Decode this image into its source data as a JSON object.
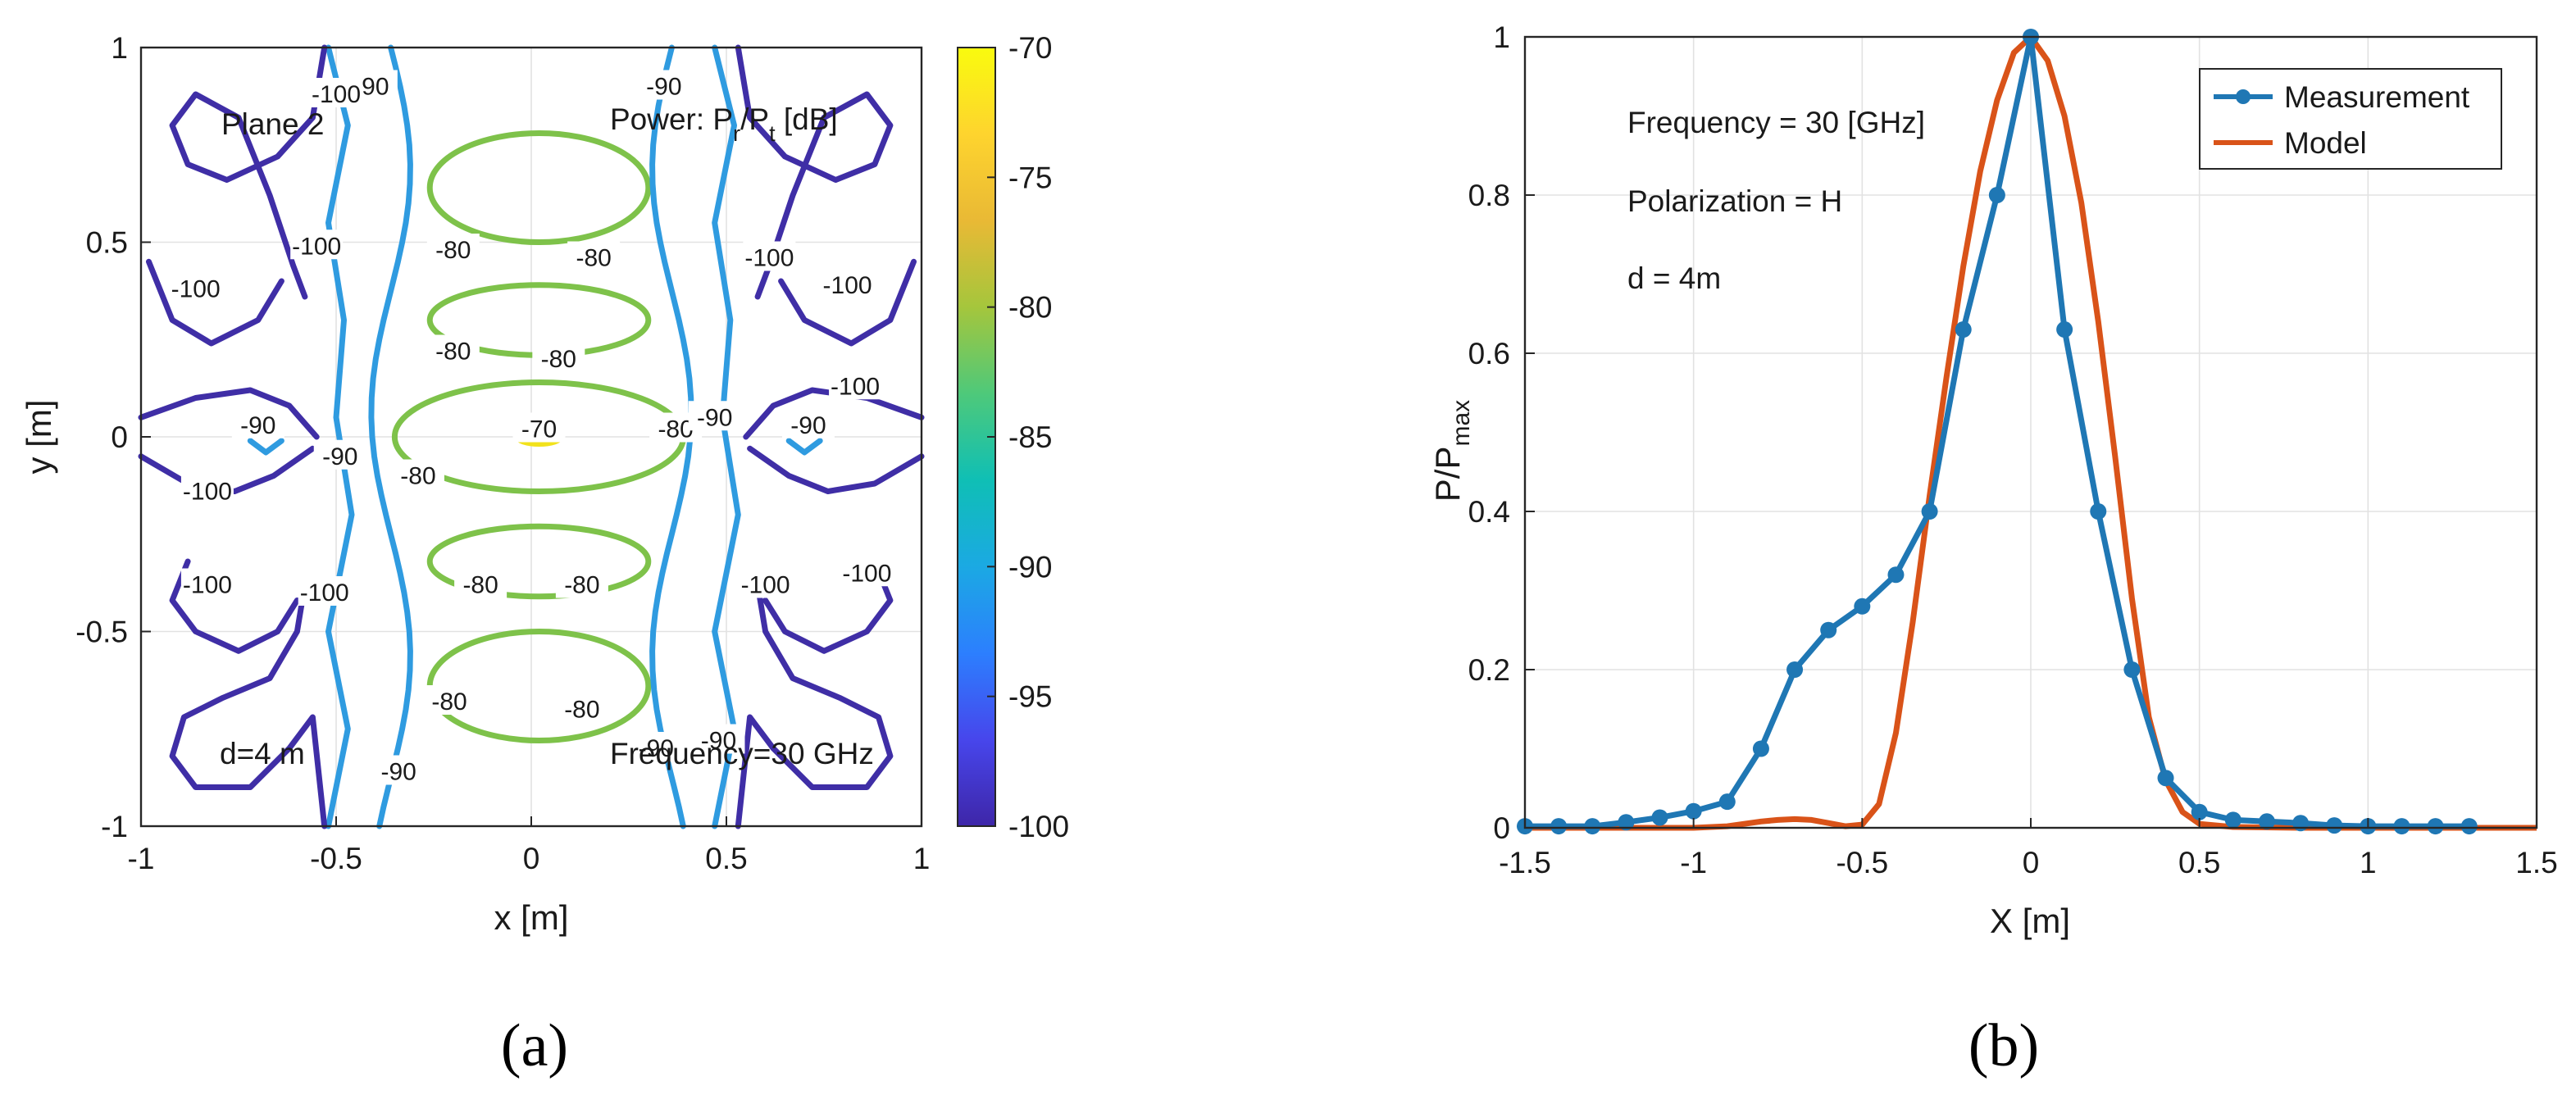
{
  "chart_data": [
    {
      "type": "contour",
      "panel_caption": "(a)",
      "xlabel": "x [m]",
      "ylabel": "y [m]",
      "xlim": [
        -1,
        1
      ],
      "ylim": [
        -1,
        1
      ],
      "xticks": [
        -1,
        -0.5,
        0,
        0.5,
        1
      ],
      "yticks": [
        -1,
        -0.5,
        0,
        0.5,
        1
      ],
      "xtick_labels": [
        "-1",
        "-0.5",
        "0",
        "0.5",
        "1"
      ],
      "ytick_labels": [
        "-1",
        "-0.5",
        "0",
        "0.5",
        "1"
      ],
      "annotations": {
        "plane": "Plane 2",
        "power": "Power: P",
        "power_sub_r": "r",
        "power_mid": "/P",
        "power_sub_t": "t",
        "power_unit": " [dB]",
        "distance": "d=4 m",
        "frequency": "Frequency=30 GHz"
      },
      "contour_levels_db": [
        -70,
        -80,
        -90,
        -100
      ],
      "level_colors": {
        "-70": "#f2e21b",
        "-80": "#7ec24a",
        "-90": "#2f9be0",
        "-100": "#3f2ea6"
      },
      "contour_labels": [
        {
          "text": "-70",
          "x": 0.02,
          "y": 0.02,
          "level": -70
        },
        {
          "text": "-80",
          "x": -0.2,
          "y": 0.48,
          "level": -80
        },
        {
          "text": "-80",
          "x": 0.16,
          "y": 0.46,
          "level": -80
        },
        {
          "text": "-80",
          "x": -0.2,
          "y": 0.22,
          "level": -80
        },
        {
          "text": "-80",
          "x": 0.07,
          "y": 0.2,
          "level": -80
        },
        {
          "text": "-80",
          "x": -0.29,
          "y": -0.1,
          "level": -80
        },
        {
          "text": "-80",
          "x": 0.37,
          "y": 0.02,
          "level": -80
        },
        {
          "text": "-80",
          "x": -0.13,
          "y": -0.38,
          "level": -80
        },
        {
          "text": "-80",
          "x": 0.13,
          "y": -0.38,
          "level": -80
        },
        {
          "text": "-80",
          "x": -0.21,
          "y": -0.68,
          "level": -80
        },
        {
          "text": "-80",
          "x": 0.13,
          "y": -0.7,
          "level": -80
        },
        {
          "text": "-90",
          "x": -0.41,
          "y": 0.9,
          "level": -90
        },
        {
          "text": "-90",
          "x": 0.34,
          "y": 0.9,
          "level": -90
        },
        {
          "text": "-90",
          "x": -0.7,
          "y": 0.03,
          "level": -90
        },
        {
          "text": "-90",
          "x": -0.49,
          "y": -0.05,
          "level": -90
        },
        {
          "text": "-90",
          "x": 0.47,
          "y": 0.05,
          "level": -90
        },
        {
          "text": "-90",
          "x": 0.71,
          "y": 0.03,
          "level": -90
        },
        {
          "text": "-90",
          "x": -0.34,
          "y": -0.86,
          "level": -90
        },
        {
          "text": "-90",
          "x": 0.32,
          "y": -0.8,
          "level": -90
        },
        {
          "text": "-90",
          "x": 0.48,
          "y": -0.78,
          "level": -90
        },
        {
          "text": "-100",
          "x": -0.5,
          "y": 0.88,
          "level": -100
        },
        {
          "text": "-100",
          "x": -0.55,
          "y": 0.49,
          "level": -100
        },
        {
          "text": "-100",
          "x": -0.86,
          "y": 0.38,
          "level": -100
        },
        {
          "text": "-100",
          "x": 0.61,
          "y": 0.46,
          "level": -100
        },
        {
          "text": "-100",
          "x": 0.81,
          "y": 0.39,
          "level": -100
        },
        {
          "text": "-100",
          "x": 0.83,
          "y": 0.13,
          "level": -100
        },
        {
          "text": "-100",
          "x": -0.83,
          "y": -0.14,
          "level": -100
        },
        {
          "text": "-100",
          "x": -0.83,
          "y": -0.38,
          "level": -100
        },
        {
          "text": "-100",
          "x": -0.53,
          "y": -0.4,
          "level": -100
        },
        {
          "text": "-100",
          "x": 0.6,
          "y": -0.38,
          "level": -100
        },
        {
          "text": "-100",
          "x": 0.86,
          "y": -0.35,
          "level": -100
        }
      ],
      "colorbar": {
        "range": [
          -100,
          -70
        ],
        "ticks": [
          -70,
          -75,
          -80,
          -85,
          -90,
          -95,
          -100
        ],
        "tick_labels": [
          "-70",
          "-75",
          "-80",
          "-85",
          "-90",
          "-95",
          "-100"
        ],
        "colormap": [
          "#3e26a8",
          "#4746ec",
          "#2c7ffe",
          "#1ba9e3",
          "#0fbfb5",
          "#4ec97a",
          "#a5c63c",
          "#e9b935",
          "#fed42e",
          "#f9fb0e"
        ]
      }
    },
    {
      "type": "line",
      "panel_caption": "(b)",
      "xlabel": "X [m]",
      "ylabel": "P/P",
      "ylabel_sub": "max",
      "xlim": [
        -1.5,
        1.5
      ],
      "ylim": [
        0,
        1
      ],
      "xticks": [
        -1.5,
        -1,
        -0.5,
        0,
        0.5,
        1,
        1.5
      ],
      "yticks": [
        0,
        0.2,
        0.4,
        0.6,
        0.8,
        1
      ],
      "xtick_labels": [
        "-1.5",
        "-1",
        "-0.5",
        "0",
        "0.5",
        "1",
        "1.5"
      ],
      "ytick_labels": [
        "0",
        "0.2",
        "0.4",
        "0.6",
        "0.8",
        "1"
      ],
      "annotations": {
        "frequency": "Frequency = 30 [GHz]",
        "polarization": "Polarization = H",
        "distance": "d = 4m"
      },
      "legend_position": "top-right",
      "series": [
        {
          "name": "Measurement",
          "color": "#1f77b4",
          "marker": "circle",
          "x": [
            -1.5,
            -1.4,
            -1.3,
            -1.2,
            -1.1,
            -1.0,
            -0.9,
            -0.8,
            -0.7,
            -0.6,
            -0.5,
            -0.4,
            -0.3,
            -0.2,
            -0.1,
            0.0,
            0.1,
            0.2,
            0.3,
            0.4,
            0.5,
            0.6,
            0.7,
            0.8,
            0.9,
            1.0,
            1.1,
            1.2,
            1.3
          ],
          "y": [
            0.002,
            0.002,
            0.002,
            0.007,
            0.013,
            0.021,
            0.033,
            0.1,
            0.2,
            0.25,
            0.28,
            0.32,
            0.4,
            0.63,
            0.8,
            1.0,
            0.63,
            0.4,
            0.2,
            0.063,
            0.02,
            0.01,
            0.008,
            0.006,
            0.003,
            0.002,
            0.002,
            0.002,
            0.002
          ]
        },
        {
          "name": "Model",
          "color": "#d95319",
          "marker": "none",
          "x": [
            -1.5,
            -1.2,
            -1.0,
            -0.9,
            -0.8,
            -0.75,
            -0.7,
            -0.65,
            -0.6,
            -0.55,
            -0.5,
            -0.45,
            -0.4,
            -0.35,
            -0.3,
            -0.25,
            -0.2,
            -0.15,
            -0.1,
            -0.05,
            0.0,
            0.05,
            0.1,
            0.15,
            0.2,
            0.25,
            0.3,
            0.35,
            0.4,
            0.45,
            0.5,
            0.6,
            0.8,
            1.0,
            1.2,
            1.5
          ],
          "y": [
            0.0,
            0.0,
            0.0,
            0.002,
            0.008,
            0.01,
            0.011,
            0.01,
            0.006,
            0.002,
            0.004,
            0.03,
            0.12,
            0.26,
            0.42,
            0.57,
            0.71,
            0.83,
            0.92,
            0.98,
            1.0,
            0.97,
            0.9,
            0.79,
            0.64,
            0.47,
            0.29,
            0.14,
            0.06,
            0.02,
            0.005,
            0.001,
            0.0,
            0.0,
            0.0,
            0.0
          ]
        }
      ]
    }
  ]
}
